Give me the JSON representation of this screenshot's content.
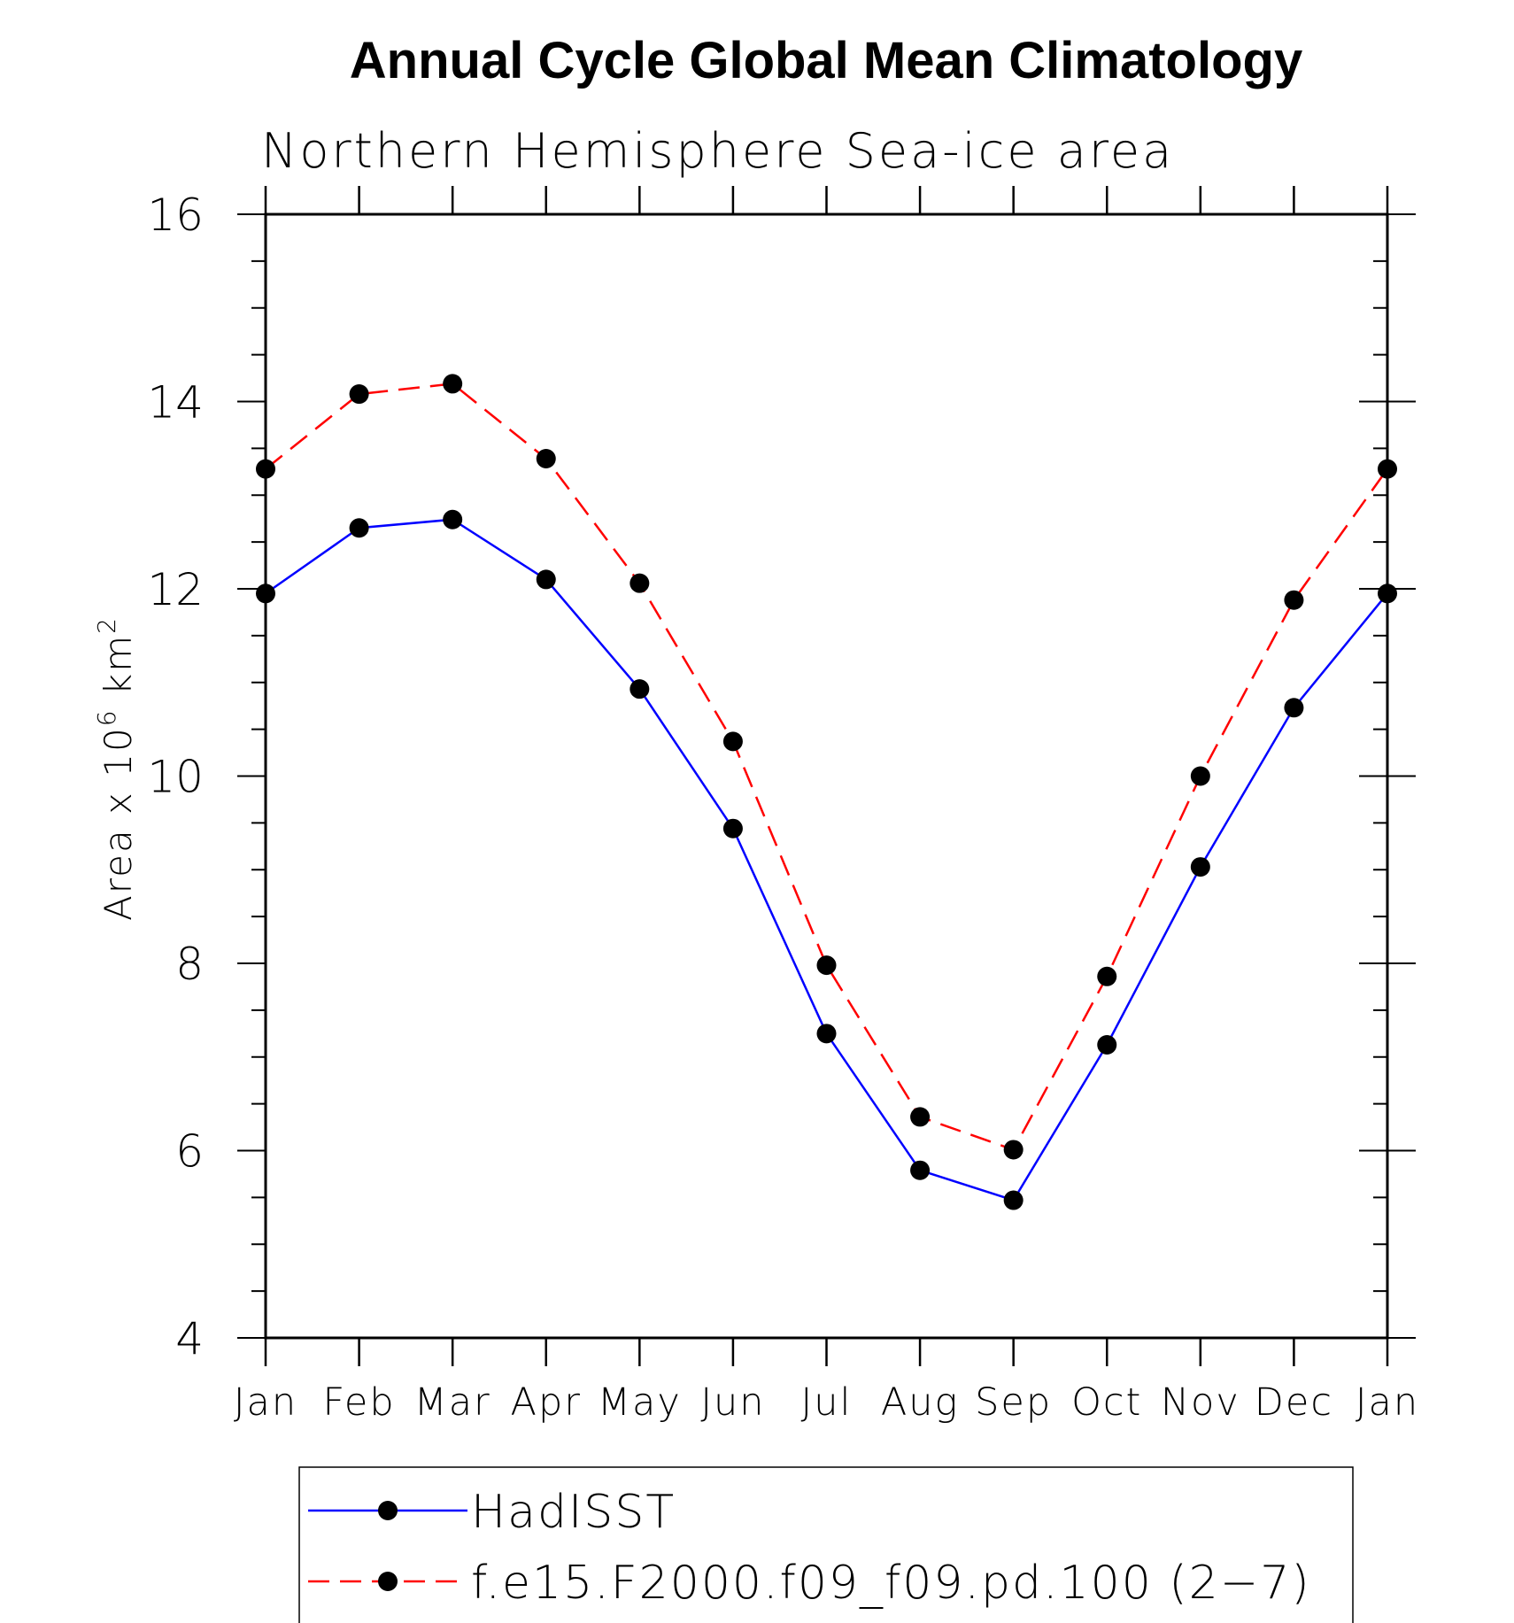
{
  "chart_data": {
    "type": "line",
    "title": "Annual Cycle Global Mean Climatology",
    "subtitle": "Northern Hemisphere Sea-ice area",
    "ylabel_main": "Area x 10",
    "ylabel_exp": "6",
    "ylabel_unit": " km",
    "ylabel_unit_exp": "2",
    "categories": [
      "Jan",
      "Feb",
      "Mar",
      "Apr",
      "May",
      "Jun",
      "Jul",
      "Aug",
      "Sep",
      "Oct",
      "Nov",
      "Dec",
      "Jan"
    ],
    "ylim": [
      4,
      16
    ],
    "yticks": [
      4,
      6,
      8,
      10,
      12,
      14,
      16
    ],
    "ytick_labels": [
      "4",
      "6",
      "8",
      "10",
      "12",
      "14",
      "16"
    ],
    "y_minor_step": 0.5,
    "series": [
      {
        "name": "HadISST",
        "color": "#0000ff",
        "dash": "solid",
        "values": [
          11.95,
          12.65,
          12.74,
          12.1,
          10.93,
          9.44,
          7.25,
          5.79,
          5.47,
          7.13,
          9.03,
          10.73,
          11.95
        ]
      },
      {
        "name": "f.e15.F2000.f09_f09.pd.100 (2−7)",
        "color": "#ff0000",
        "dash": "dashed",
        "values": [
          13.28,
          14.08,
          14.19,
          13.39,
          12.06,
          10.37,
          7.98,
          6.36,
          6.01,
          7.86,
          10.0,
          11.88,
          13.28
        ]
      }
    ],
    "marker_color": "#000000",
    "legend_position": "bottom"
  }
}
